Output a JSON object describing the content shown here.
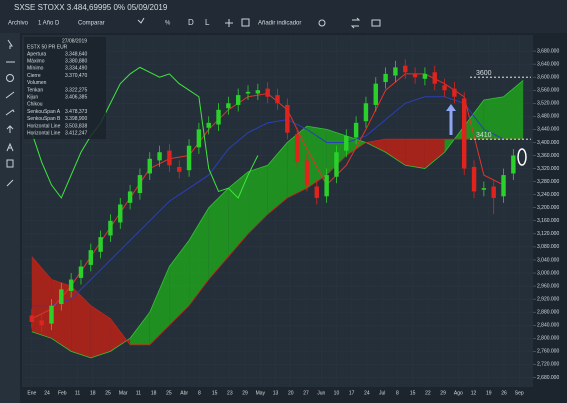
{
  "toolbar": {
    "title": "SXSE STOXX 3.484,69995 0% 05/09/2019",
    "items": [
      "Archivo",
      "1 Año D",
      "Comparar",
      "%",
      "D",
      "L",
      "Añadir indicador"
    ]
  },
  "info_panel": {
    "date": "27/08/2019",
    "symbol": "ESTX 50 PR EUR",
    "rows": [
      [
        "Apertura",
        "3.348,640"
      ],
      [
        "Máximo",
        "3.380,880"
      ],
      [
        "Mínimo",
        "3.334,490"
      ],
      [
        "Cierre",
        "3.370,470"
      ],
      [
        "Volumen",
        ""
      ],
      [
        "Tenkan",
        "3.322,275"
      ],
      [
        "Kijun",
        "3.406,385"
      ],
      [
        "Chikou",
        ""
      ],
      [
        "SenkouSpan A",
        "3.478,373"
      ],
      [
        "SenkouSpan B",
        "3.398,900"
      ],
      [
        "Horizontal Line",
        "3.503,838"
      ],
      [
        "Horizontal Line",
        "3.412,247"
      ]
    ]
  },
  "chart_data": {
    "type": "candlestick",
    "grid": true,
    "xlim": [
      -1,
      51
    ],
    "ylim": [
      2660,
      3720
    ],
    "yticks": [
      {
        "value": 2680,
        "label": "2,680.000"
      },
      {
        "value": 2720,
        "label": "2,720.000"
      },
      {
        "value": 2760,
        "label": "2,760.000"
      },
      {
        "value": 2800,
        "label": "2,800.000"
      },
      {
        "value": 2840,
        "label": "2,840.000"
      },
      {
        "value": 2880,
        "label": "2,880.000"
      },
      {
        "value": 2920,
        "label": "2,920.000"
      },
      {
        "value": 2960,
        "label": "2,960.000"
      },
      {
        "value": 3000,
        "label": "3,000.000"
      },
      {
        "value": 3040,
        "label": "3,040.000"
      },
      {
        "value": 3080,
        "label": "3,080.000"
      },
      {
        "value": 3120,
        "label": "3,120.000"
      },
      {
        "value": 3160,
        "label": "3,160.000"
      },
      {
        "value": 3200,
        "label": "3,200.000"
      },
      {
        "value": 3240,
        "label": "3,240.000"
      },
      {
        "value": 3280,
        "label": "3,280.000"
      },
      {
        "value": 3320,
        "label": "3,320.000"
      },
      {
        "value": 3360,
        "label": "3,360.000"
      },
      {
        "value": 3400,
        "label": "3,400.000"
      },
      {
        "value": 3440,
        "label": "3,440.000"
      },
      {
        "value": 3480,
        "label": "3,480.000"
      },
      {
        "value": 3520,
        "label": "3,520.000"
      },
      {
        "value": 3560,
        "label": "3,560.000"
      },
      {
        "value": 3600,
        "label": "3,600.000"
      },
      {
        "value": 3640,
        "label": "3,640.000"
      },
      {
        "value": 3680,
        "label": "3,680.000"
      }
    ],
    "xticks": [
      {
        "value": 0,
        "label": "Ene"
      },
      {
        "value": 1.55,
        "label": "24"
      },
      {
        "value": 3.1,
        "label": "Feb"
      },
      {
        "value": 4.65,
        "label": "11"
      },
      {
        "value": 6.2,
        "label": "18"
      },
      {
        "value": 7.75,
        "label": "25"
      },
      {
        "value": 9.3,
        "label": "Mar"
      },
      {
        "value": 10.85,
        "label": "11"
      },
      {
        "value": 12.4,
        "label": "18"
      },
      {
        "value": 13.95,
        "label": "25"
      },
      {
        "value": 15.5,
        "label": "Abr"
      },
      {
        "value": 17.05,
        "label": "8"
      },
      {
        "value": 18.6,
        "label": "15"
      },
      {
        "value": 20.15,
        "label": "23"
      },
      {
        "value": 21.7,
        "label": "29"
      },
      {
        "value": 23.25,
        "label": "May"
      },
      {
        "value": 24.8,
        "label": "13"
      },
      {
        "value": 26.35,
        "label": "20"
      },
      {
        "value": 27.9,
        "label": "27"
      },
      {
        "value": 29.45,
        "label": "Jun"
      },
      {
        "value": 31,
        "label": "10"
      },
      {
        "value": 32.55,
        "label": "17"
      },
      {
        "value": 34.1,
        "label": "24"
      },
      {
        "value": 35.65,
        "label": "Jul"
      },
      {
        "value": 37.2,
        "label": "8"
      },
      {
        "value": 38.75,
        "label": "15"
      },
      {
        "value": 40.3,
        "label": "22"
      },
      {
        "value": 41.85,
        "label": "29"
      },
      {
        "value": 43.4,
        "label": "Ago"
      },
      {
        "value": 44.95,
        "label": "12"
      },
      {
        "value": 46.5,
        "label": "19"
      },
      {
        "value": 48.05,
        "label": "26"
      },
      {
        "value": 49.6,
        "label": "Sep"
      }
    ],
    "candles": {
      "up_color": "#2bd12b",
      "down_color": "#e0231c",
      "open": [
        2870,
        2855,
        2845,
        2905,
        2945,
        2985,
        3025,
        3065,
        3115,
        3155,
        3215,
        3245,
        3305,
        3345,
        3375,
        3325,
        3315,
        3385,
        3445,
        3455,
        3505,
        3515,
        3550,
        3550,
        3565,
        3545,
        3515,
        3425,
        3345,
        3265,
        3235,
        3295,
        3375,
        3415,
        3465,
        3515,
        3585,
        3605,
        3635,
        3610,
        3595,
        3615,
        3575,
        3565,
        3535,
        3325,
        3255,
        3265,
        3235,
        3305
      ],
      "high": [
        2890,
        2875,
        2920,
        2970,
        3000,
        3040,
        3090,
        3130,
        3180,
        3230,
        3270,
        3320,
        3370,
        3390,
        3395,
        3345,
        3410,
        3460,
        3480,
        3520,
        3540,
        3565,
        3575,
        3580,
        3585,
        3565,
        3535,
        3445,
        3365,
        3285,
        3320,
        3390,
        3440,
        3480,
        3540,
        3600,
        3630,
        3650,
        3655,
        3630,
        3630,
        3635,
        3595,
        3585,
        3555,
        3345,
        3280,
        3285,
        3320,
        3380
      ],
      "low": [
        2830,
        2820,
        2825,
        2885,
        2925,
        2965,
        3005,
        3045,
        3095,
        3135,
        3195,
        3225,
        3285,
        3325,
        3310,
        3290,
        3295,
        3365,
        3425,
        3435,
        3485,
        3495,
        3530,
        3530,
        3520,
        3500,
        3410,
        3320,
        3250,
        3210,
        3215,
        3275,
        3355,
        3395,
        3445,
        3495,
        3565,
        3585,
        3595,
        3580,
        3575,
        3560,
        3540,
        3520,
        3300,
        3230,
        3235,
        3180,
        3215,
        3285
      ],
      "close": [
        2850,
        2840,
        2900,
        2950,
        2980,
        3020,
        3070,
        3110,
        3160,
        3210,
        3250,
        3300,
        3350,
        3370,
        3330,
        3310,
        3390,
        3440,
        3460,
        3500,
        3520,
        3545,
        3555,
        3560,
        3540,
        3520,
        3430,
        3340,
        3270,
        3230,
        3300,
        3370,
        3420,
        3460,
        3520,
        3580,
        3610,
        3630,
        3615,
        3600,
        3610,
        3580,
        3560,
        3540,
        3320,
        3250,
        3260,
        3230,
        3300,
        3360
      ]
    },
    "span_a": {
      "color": "#35c235",
      "x": [
        0,
        2,
        4,
        6,
        8,
        10,
        12,
        14,
        16,
        18,
        20,
        22,
        24,
        26,
        28,
        30,
        32,
        34,
        36,
        38,
        40,
        42,
        44,
        46,
        48,
        50
      ],
      "values": [
        2820,
        2800,
        2760,
        2740,
        2760,
        2800,
        2880,
        3020,
        3100,
        3200,
        3260,
        3310,
        3330,
        3400,
        3450,
        3440,
        3420,
        3400,
        3370,
        3330,
        3320,
        3370,
        3450,
        3530,
        3540,
        3590
      ]
    },
    "span_b": {
      "color": "#c0261c",
      "x": [
        0,
        2,
        4,
        6,
        8,
        10,
        12,
        14,
        16,
        18,
        20,
        22,
        24,
        26,
        28,
        30,
        32,
        34,
        36,
        38,
        40,
        42,
        44,
        46,
        48,
        50
      ],
      "values": [
        3050,
        2980,
        2960,
        2900,
        2860,
        2780,
        2780,
        2840,
        2900,
        2980,
        3050,
        3120,
        3180,
        3230,
        3260,
        3300,
        3360,
        3400,
        3410,
        3410,
        3410,
        3410,
        3410,
        3410,
        3410,
        3410
      ]
    },
    "cloud_up_color": "#1f9a1f",
    "cloud_down_color": "#b32218",
    "tenkan": {
      "color": "#e0332a",
      "x": [
        0,
        2,
        4,
        6,
        8,
        10,
        12,
        14,
        16,
        18,
        20,
        22,
        24,
        26,
        28,
        30,
        32,
        34,
        36,
        38,
        40,
        42,
        44,
        46,
        48
      ],
      "values": [
        2860,
        2890,
        2960,
        3050,
        3140,
        3230,
        3320,
        3350,
        3360,
        3440,
        3500,
        3540,
        3550,
        3500,
        3380,
        3270,
        3330,
        3440,
        3560,
        3610,
        3610,
        3580,
        3540,
        3300,
        3270
      ]
    },
    "kijun": {
      "color": "#2a3fb8",
      "x": [
        0,
        2,
        4,
        6,
        8,
        10,
        12,
        14,
        16,
        18,
        20,
        22,
        24,
        26,
        28,
        30,
        32,
        34,
        36,
        38,
        40,
        42,
        44,
        46,
        48
      ],
      "values": [
        2900,
        2900,
        2920,
        2980,
        3040,
        3100,
        3160,
        3220,
        3260,
        3300,
        3380,
        3430,
        3460,
        3470,
        3440,
        3400,
        3400,
        3420,
        3470,
        3520,
        3540,
        3540,
        3520,
        3440,
        3410
      ]
    },
    "chikou": {
      "color": "#3ee63e",
      "x": [
        0,
        1,
        2,
        3,
        4,
        5,
        6,
        7,
        8,
        9,
        10,
        11,
        12,
        13,
        14,
        15,
        16,
        17,
        18,
        19,
        20,
        21,
        22,
        23
      ],
      "values": [
        3430,
        3340,
        3270,
        3230,
        3300,
        3370,
        3420,
        3460,
        3520,
        3580,
        3610,
        3630,
        3615,
        3600,
        3610,
        3580,
        3560,
        3540,
        3320,
        3250,
        3260,
        3230,
        3300,
        3360
      ]
    },
    "hlines": [
      3600,
      3410
    ]
  }
}
